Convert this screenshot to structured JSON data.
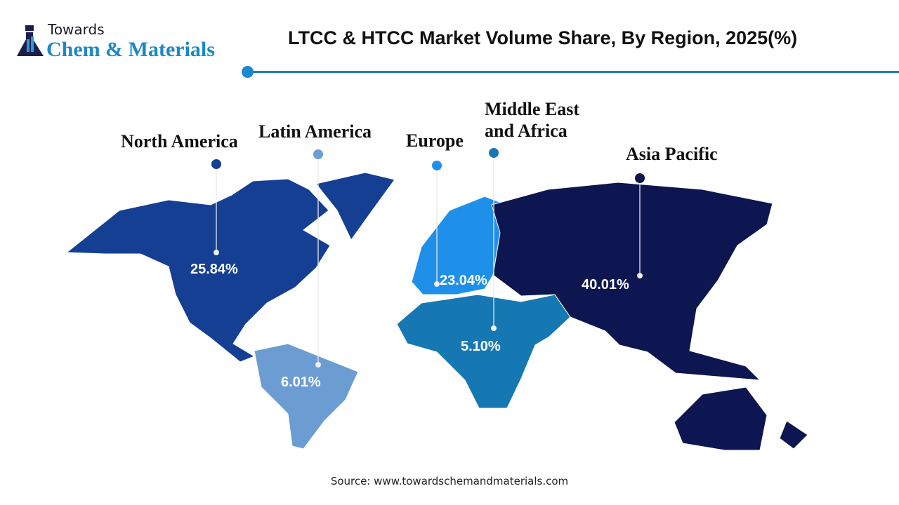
{
  "logo": {
    "line1": "Towards",
    "line2": "Chem & Materials"
  },
  "title": "LTCC & HTCC Market  Volume Share, By Region, 2025(%)",
  "source": "Source: www.towardschemandmaterials.com",
  "chart_data": {
    "type": "choropleth-map",
    "title": "LTCC & HTCC Market  Volume Share, By Region, 2025(%)",
    "unit": "%",
    "regions": [
      {
        "name": "North America",
        "value": 25.84,
        "label": "25.84%",
        "color": "#143f92"
      },
      {
        "name": "Latin America",
        "value": 6.01,
        "label": "6.01%",
        "color": "#6b9dd3"
      },
      {
        "name": "Europe",
        "value": 23.04,
        "label": "23.04%",
        "color": "#1f90ea"
      },
      {
        "name": "Middle East and Africa",
        "label_line1": "Middle East",
        "label_line2": "and Africa",
        "value": 5.1,
        "label": "5.10%",
        "color": "#1678b2"
      },
      {
        "name": "Asia Pacific",
        "value": 40.01,
        "label": "40.01%",
        "color": "#0d1650"
      }
    ]
  }
}
